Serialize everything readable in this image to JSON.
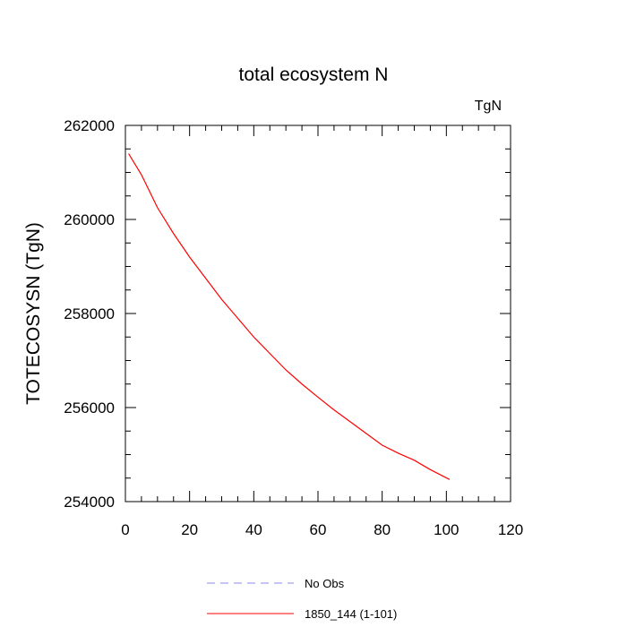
{
  "chart_data": {
    "type": "line",
    "title": "total ecosystem N",
    "units_label": "TgN",
    "ylabel": "TOTECOSYSN  (TgN)",
    "xlabel": "",
    "xlim": [
      0,
      120
    ],
    "ylim": [
      254000,
      262000
    ],
    "x_ticks": [
      0,
      20,
      40,
      60,
      80,
      100,
      120
    ],
    "y_ticks": [
      254000,
      256000,
      258000,
      260000,
      262000
    ],
    "x_tick_labels": [
      "0",
      "20",
      "40",
      "60",
      "80",
      "100",
      "120"
    ],
    "y_tick_labels": [
      "254000",
      "256000",
      "258000",
      "260000",
      "262000"
    ],
    "grid": false,
    "legend_position": "bottom",
    "series": [
      {
        "name": "1850_144 (1-101)",
        "color": "#ff0000",
        "dash": "solid",
        "x": [
          1,
          5,
          10,
          15,
          20,
          25,
          30,
          35,
          40,
          45,
          50,
          55,
          60,
          65,
          70,
          75,
          80,
          85,
          90,
          95,
          101
        ],
        "y": [
          261400,
          260950,
          260250,
          259700,
          259200,
          258750,
          258300,
          257900,
          257500,
          257150,
          256800,
          256500,
          256220,
          255950,
          255700,
          255450,
          255200,
          255030,
          254880,
          254680,
          254470
        ]
      },
      {
        "name": "No Obs",
        "color": "#8888ee",
        "dash": "dashed",
        "x": [],
        "y": []
      }
    ]
  }
}
